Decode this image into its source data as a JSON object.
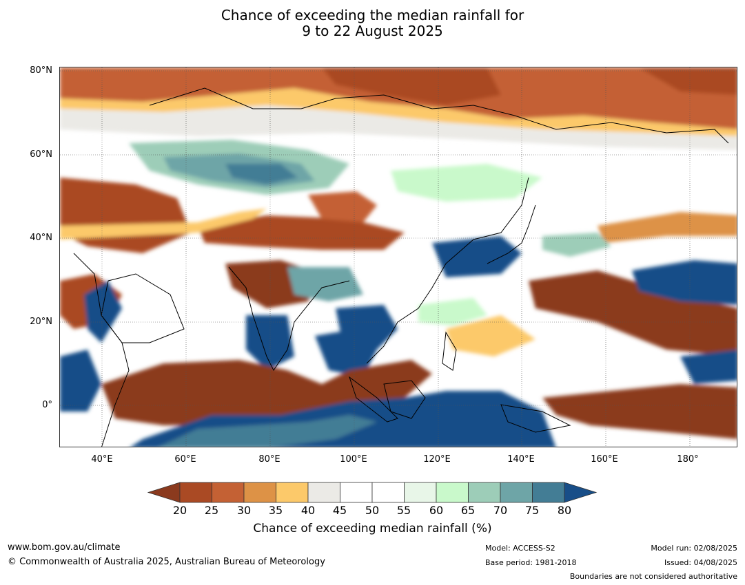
{
  "title": {
    "line1": "Chance of exceeding the median rainfall for",
    "line2": "9 to 22 August 2025"
  },
  "map": {
    "projection": "plate-carree",
    "lon_range": [
      30,
      191
    ],
    "lat_range": [
      -10,
      81
    ],
    "lat_labels": [
      "80°N",
      "60°N",
      "40°N",
      "20°N",
      "0°"
    ],
    "lon_labels": [
      "40°E",
      "60°E",
      "80°E",
      "100°E",
      "120°E",
      "140°E",
      "160°E",
      "180°"
    ],
    "gridlines": true,
    "layers": [
      "probability-contours",
      "coastlines",
      "country-boundaries"
    ]
  },
  "colorbar": {
    "title": "Chance of exceeding median rainfall (%)",
    "ticks": [
      "20",
      "25",
      "30",
      "35",
      "40",
      "45",
      "50",
      "55",
      "60",
      "65",
      "70",
      "75",
      "80"
    ],
    "colors": [
      "#8b3a1e",
      "#aa4a24",
      "#c46134",
      "#dd9246",
      "#fcc96a",
      "#ebeae6",
      "#ffffff",
      "#ffffff",
      "#e8f6e8",
      "#c9f9cb",
      "#9dcdb8",
      "#6ea5a7",
      "#437d95",
      "#184e88"
    ],
    "extends": "both"
  },
  "footer": {
    "website": "www.bom.gov.au/climate",
    "copyright": "© Commonwealth of Australia 2025, Australian Bureau of Meteorology",
    "model": "Model: ACCESS-S2",
    "base_period": "Base period: 1981-2018",
    "model_run": "Model run: 02/08/2025",
    "issued": "Issued: 04/08/2025",
    "disclaimer": "Boundaries are not considered authoritative"
  }
}
